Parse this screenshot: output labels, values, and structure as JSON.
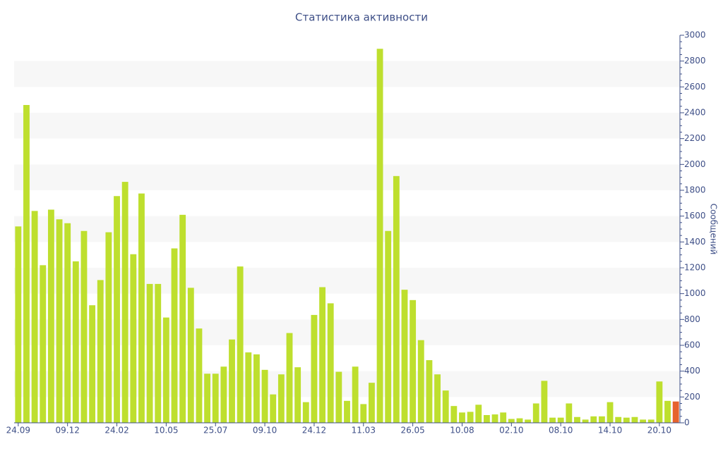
{
  "chart_data": {
    "type": "bar",
    "title": "Статистика активности",
    "y_label": "Сообщений",
    "categories": [
      "24.09",
      null,
      null,
      null,
      null,
      null,
      "09.12",
      null,
      null,
      null,
      null,
      null,
      "24.02",
      null,
      null,
      null,
      null,
      null,
      "10.05",
      null,
      null,
      null,
      null,
      null,
      "25.07",
      null,
      null,
      null,
      null,
      null,
      "09.10",
      null,
      null,
      null,
      null,
      null,
      "24.12",
      null,
      null,
      null,
      null,
      null,
      "11.03",
      null,
      null,
      null,
      null,
      null,
      "26.05",
      null,
      null,
      null,
      null,
      null,
      "10.08",
      null,
      null,
      null,
      null,
      null,
      "02.10",
      null,
      null,
      null,
      null,
      null,
      "08.10",
      null,
      null,
      null,
      null,
      null,
      "14.10",
      null,
      null,
      null,
      null,
      null,
      "20.10",
      null,
      null
    ],
    "values": [
      1520,
      2460,
      1640,
      1220,
      1650,
      1575,
      1545,
      1250,
      1485,
      910,
      1105,
      1475,
      1755,
      1865,
      1305,
      1775,
      1075,
      1075,
      815,
      1350,
      1610,
      1045,
      730,
      380,
      380,
      435,
      645,
      1210,
      545,
      530,
      410,
      220,
      375,
      695,
      430,
      160,
      835,
      1050,
      925,
      395,
      170,
      435,
      145,
      310,
      2895,
      1485,
      1910,
      1030,
      950,
      640,
      485,
      375,
      250,
      130,
      80,
      85,
      140,
      60,
      65,
      80,
      30,
      35,
      25,
      150,
      325,
      40,
      40,
      150,
      45,
      25,
      50,
      50,
      160,
      45,
      40,
      45,
      25,
      25,
      320,
      170,
      165
    ],
    "color": "#bedf2e",
    "last_color": "#e6632d",
    "ylim": [
      0,
      3000
    ],
    "yticks": [
      0,
      200,
      400,
      600,
      800,
      1000,
      1200,
      1400,
      1600,
      1800,
      2000,
      2200,
      2400,
      2600,
      2800,
      3000
    ],
    "grid": "bands",
    "y_axis_side": "right"
  }
}
